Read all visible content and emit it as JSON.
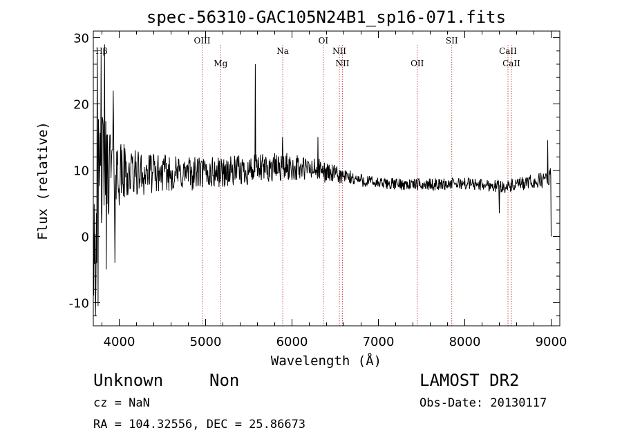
{
  "chart_data": {
    "type": "line",
    "title": "spec-56310-GAC105N24B1_sp16-071.fits",
    "xlabel": "Wavelength (Å)",
    "ylabel": "Flux (relative)",
    "xlim": [
      3700,
      9100
    ],
    "ylim": [
      -13.5,
      31
    ],
    "xticks": [
      4000,
      5000,
      6000,
      7000,
      8000,
      9000
    ],
    "yticks": [
      -10,
      0,
      10,
      20,
      30
    ],
    "grid": false,
    "spectral_lines": [
      {
        "name": "Hβ",
        "wavelength": 3730
      },
      {
        "name": "OIII",
        "wavelength": 4960
      },
      {
        "name": "Mg",
        "wavelength": 5175
      },
      {
        "name": "Na",
        "wavelength": 5893
      },
      {
        "name": "OI",
        "wavelength": 6363
      },
      {
        "name": "NII",
        "wavelength": 6548
      },
      {
        "name": "NII",
        "wavelength": 6584
      },
      {
        "name": "OII",
        "wavelength": 7450
      },
      {
        "name": "SII",
        "wavelength": 7850
      },
      {
        "name": "CaII",
        "wavelength": 8500
      },
      {
        "name": "CaII",
        "wavelength": 8540
      }
    ],
    "spectrum_envelope": [
      {
        "x": 3700,
        "y": 2.0,
        "scatter": 14.0
      },
      {
        "x": 3800,
        "y": 10.0,
        "scatter": 9.0
      },
      {
        "x": 3900,
        "y": 10.5,
        "scatter": 7.0
      },
      {
        "x": 4000,
        "y": 9.5,
        "scatter": 5.0
      },
      {
        "x": 4200,
        "y": 9.5,
        "scatter": 3.5
      },
      {
        "x": 4500,
        "y": 9.5,
        "scatter": 2.8
      },
      {
        "x": 5000,
        "y": 9.5,
        "scatter": 2.5
      },
      {
        "x": 5500,
        "y": 10.0,
        "scatter": 2.3
      },
      {
        "x": 5900,
        "y": 10.5,
        "scatter": 2.2
      },
      {
        "x": 6300,
        "y": 10.0,
        "scatter": 1.8
      },
      {
        "x": 6600,
        "y": 9.0,
        "scatter": 1.2
      },
      {
        "x": 7000,
        "y": 8.0,
        "scatter": 0.9
      },
      {
        "x": 7500,
        "y": 7.8,
        "scatter": 0.9
      },
      {
        "x": 8000,
        "y": 8.0,
        "scatter": 0.9
      },
      {
        "x": 8500,
        "y": 7.5,
        "scatter": 1.0
      },
      {
        "x": 8900,
        "y": 8.5,
        "scatter": 1.2
      },
      {
        "x": 9000,
        "y": 9.0,
        "scatter": 1.5
      }
    ],
    "spectrum_spikes": [
      {
        "x": 3725,
        "y": -12.0
      },
      {
        "x": 3745,
        "y": 28.0
      },
      {
        "x": 3755,
        "y": -10.5
      },
      {
        "x": 3790,
        "y": 27.5
      },
      {
        "x": 3830,
        "y": 29.0
      },
      {
        "x": 3850,
        "y": -5.0
      },
      {
        "x": 3930,
        "y": 22.0
      },
      {
        "x": 3950,
        "y": -4.0
      },
      {
        "x": 5577,
        "y": 26.0
      },
      {
        "x": 5890,
        "y": 15.0
      },
      {
        "x": 6300,
        "y": 15.0
      },
      {
        "x": 8400,
        "y": 3.5
      },
      {
        "x": 8960,
        "y": 14.5
      },
      {
        "x": 9000,
        "y": 0.0
      }
    ]
  },
  "footer": {
    "object_class": "Unknown",
    "object_subclass": "Non",
    "survey": "LAMOST DR2",
    "cz": "cz = NaN",
    "obs_date": "Obs-Date: 20130117",
    "coords": "RA = 104.32556, DEC =  25.86673"
  }
}
